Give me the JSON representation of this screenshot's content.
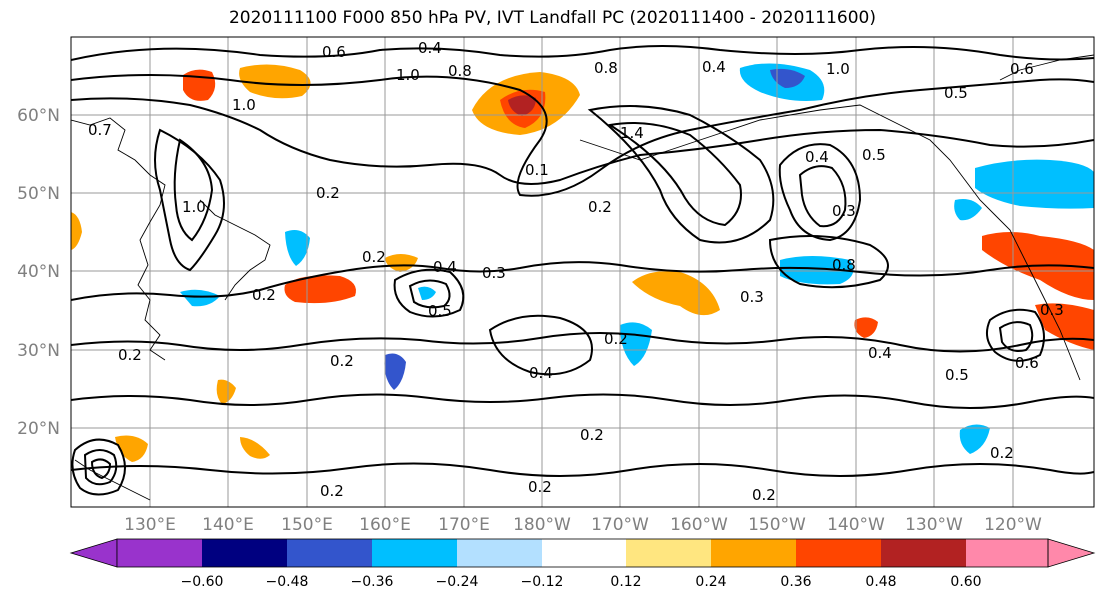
{
  "title": "2020111100 F000 850 hPa PV, IVT Landfall PC (2020111400 - 2020111600)",
  "lat_labels": [
    "60°N",
    "50°N",
    "40°N",
    "30°N",
    "20°N"
  ],
  "lon_labels": [
    "130°E",
    "140°E",
    "150°E",
    "160°E",
    "170°E",
    "180°W",
    "170°W",
    "160°W",
    "150°W",
    "140°W",
    "130°W",
    "120°W"
  ],
  "colorbar": {
    "colors": [
      "#9933cc",
      "#000080",
      "#3355cc",
      "#00bfff",
      "#b3e0ff",
      "#ffffff",
      "#ffe680",
      "#ffa500",
      "#ff4500",
      "#b22222",
      "#ff88aa"
    ],
    "tick_labels": [
      "−0.60",
      "−0.48",
      "−0.36",
      "−0.24",
      "−0.12",
      "0.12",
      "0.24",
      "0.36",
      "0.48",
      "0.60"
    ]
  },
  "contour_labels": [
    "0.6",
    "0.4",
    "0.8",
    "1.0",
    "0.8",
    "0.4",
    "1.0",
    "0.5",
    "0.6",
    "0.7",
    "1.0",
    "0.2",
    "1.0",
    "0.1",
    "1.4",
    "0.2",
    "0.4",
    "0.5",
    "0.3",
    "0.8",
    "0.2",
    "0.4",
    "0.3",
    "0.2",
    "0.5",
    "0.3",
    "0.2",
    "0.4",
    "0.3",
    "0.4",
    "0.5",
    "0.6",
    "0.2",
    "0.2",
    "0.2",
    "0.2",
    "0.2",
    "0.2",
    "0.2"
  ]
}
